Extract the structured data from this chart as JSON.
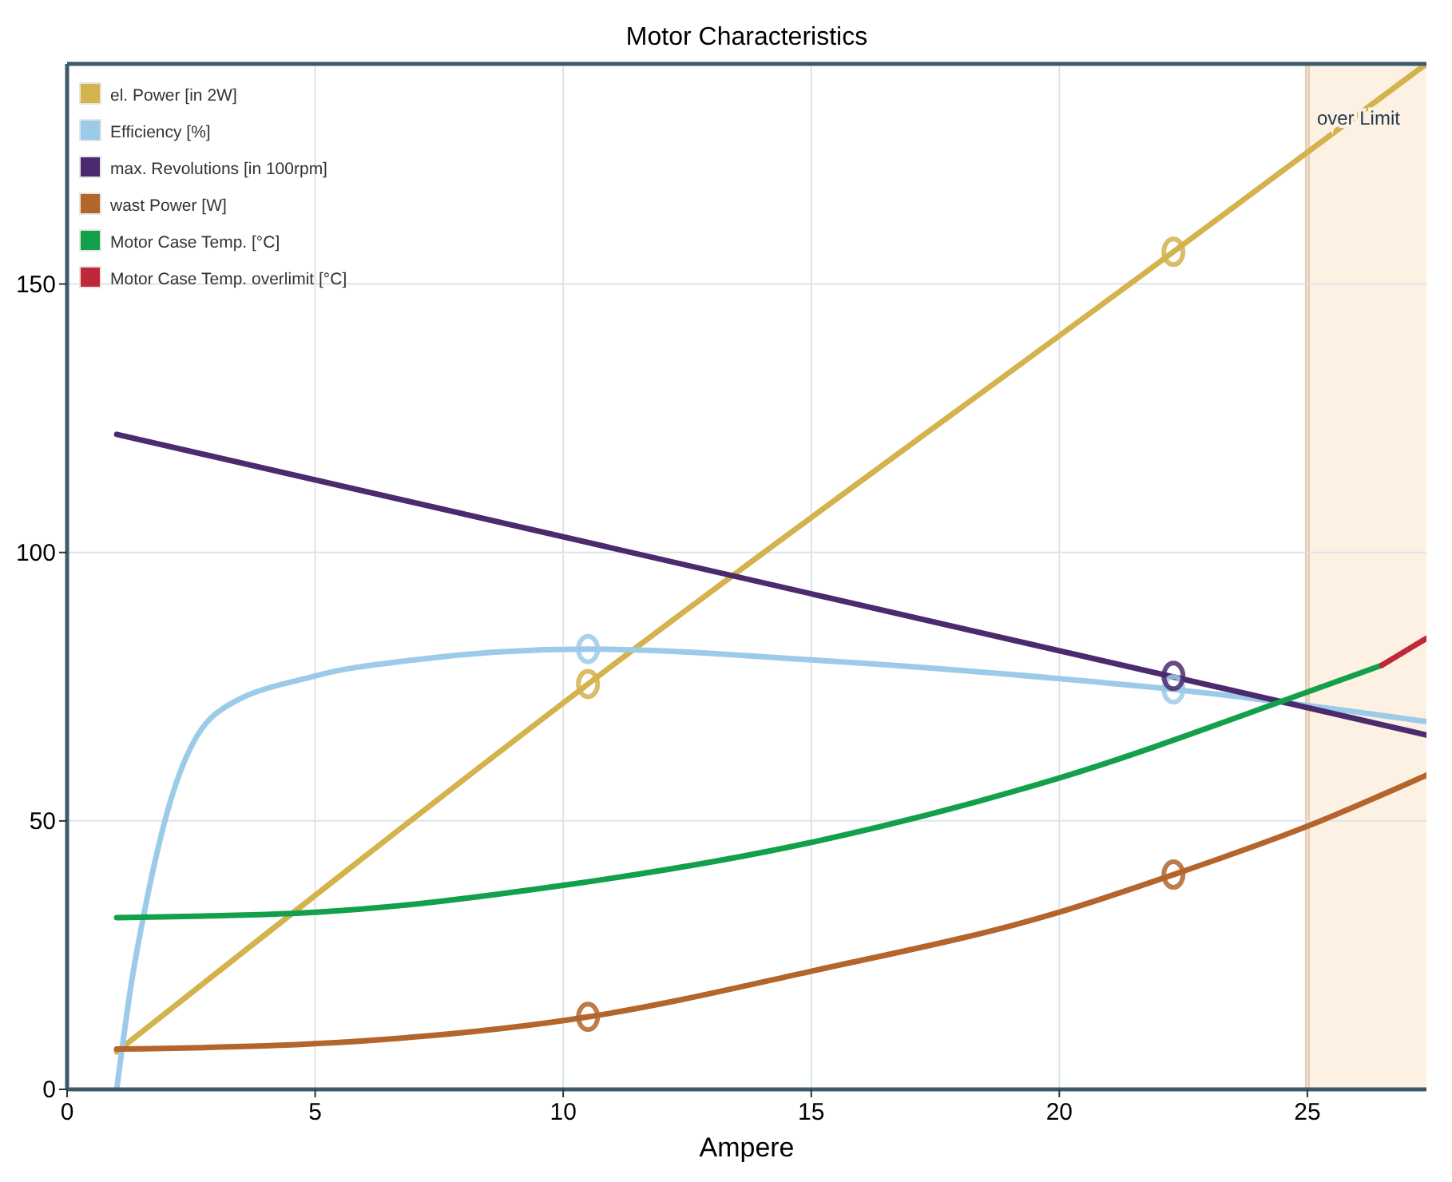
{
  "chart_data": {
    "type": "line",
    "title": "Motor Characteristics",
    "xlabel": "Ampere",
    "xlim": [
      0,
      27.4
    ],
    "ylim": [
      0,
      191
    ],
    "xticks": [
      0,
      5,
      10,
      15,
      20,
      25
    ],
    "yticks": [
      0,
      50,
      100,
      150
    ],
    "grid": true,
    "legend": "top left",
    "bands": [
      {
        "axis": "x",
        "from": 25,
        "to": 27.4,
        "label": "over Limit",
        "color": "#fdf1e4"
      }
    ],
    "ref_lines": [
      {
        "axis": "x",
        "value": 25,
        "color": "#efc9a8"
      }
    ],
    "series": [
      {
        "name": "el. Power [in 2W]",
        "color": "#d4b24c",
        "x": [
          1,
          10.5,
          22.3,
          27.4
        ],
        "values": [
          7,
          75.5,
          156,
          191
        ]
      },
      {
        "name": "Efficiency [%]",
        "color": "#9ccbe9",
        "x": [
          1,
          1.3,
          1.6,
          2,
          3,
          5,
          7,
          10.5,
          15,
          20,
          22.3,
          27.4
        ],
        "values": [
          0,
          20,
          35,
          51,
          70,
          77,
          80,
          82,
          80,
          76.5,
          74.5,
          68.5
        ]
      },
      {
        "name": "max. Revolutions [in 100rpm]",
        "color": "#4b2a6e",
        "x": [
          1,
          27.4
        ],
        "values": [
          122,
          66
        ]
      },
      {
        "name": "wast Power [W]",
        "color": "#b3652c",
        "x": [
          1,
          5,
          10.5,
          15,
          20,
          22.3,
          25,
          27.4
        ],
        "values": [
          7.5,
          8.5,
          13.5,
          22,
          33,
          40,
          49,
          58.5
        ]
      },
      {
        "name": "Motor Case Temp. [°C]",
        "color": "#12a04a",
        "x": [
          1,
          5,
          10,
          15,
          20,
          25,
          26.5
        ],
        "values": [
          32,
          33,
          38,
          46,
          58,
          74,
          79
        ]
      },
      {
        "name": "Motor Case Temp. overlimit [°C]",
        "color": "#c0283a",
        "x": [
          26.5,
          27.4
        ],
        "values": [
          79,
          84
        ]
      },
      {
        "type": "scatter",
        "marker": "circle",
        "x": [
          10.5,
          22.3,
          10.5,
          22.3,
          22.3,
          10.5,
          22.3
        ],
        "values": [
          75.5,
          156,
          82,
          74.5,
          77,
          13.5,
          40
        ],
        "colors": [
          "#d4b24c",
          "#d4b24c",
          "#9ccbe9",
          "#9ccbe9",
          "#4b2a6e",
          "#b3652c",
          "#b3652c"
        ]
      }
    ]
  }
}
